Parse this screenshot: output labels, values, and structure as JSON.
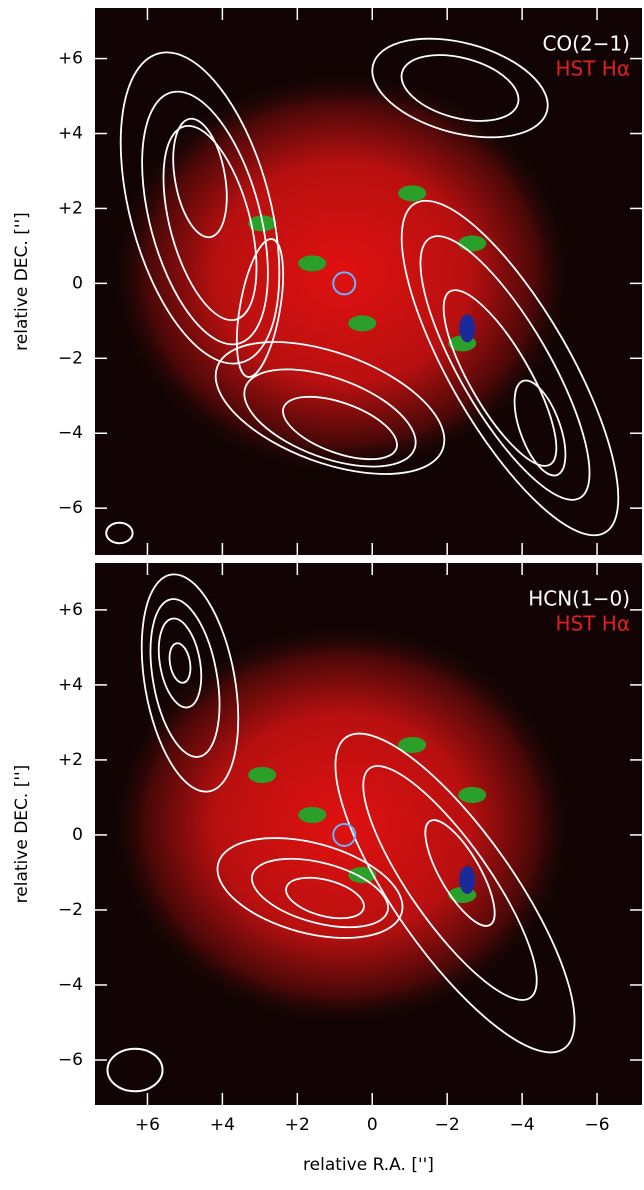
{
  "chart_data": [
    {
      "type": "image",
      "legend": [
        "CO(2−1)",
        "HST Hα"
      ],
      "ylabel": "relative DEC. ['']",
      "xlim": [
        7.4,
        -7.2
      ],
      "ylim": [
        -7.25,
        7.35
      ],
      "xticks": [
        {
          "value": 6,
          "label": "+6"
        },
        {
          "value": 4,
          "label": "+4"
        },
        {
          "value": 2,
          "label": "+2"
        },
        0,
        {
          "value": -2,
          "label": "−2"
        },
        {
          "value": -4,
          "label": "−4"
        },
        {
          "value": -6,
          "label": "−6"
        }
      ],
      "yticks": [
        {
          "value": 6,
          "label": "+6"
        },
        {
          "value": 4,
          "label": "+4"
        },
        {
          "value": 2,
          "label": "+2"
        },
        0,
        {
          "value": -2,
          "label": "−2"
        },
        {
          "value": -4,
          "label": "−4"
        },
        {
          "value": -6,
          "label": "−6"
        }
      ]
    },
    {
      "type": "image",
      "legend": [
        "HCN(1−0)",
        "HST Hα"
      ],
      "ylabel": "relative DEC. ['']",
      "xlabel": "relative R.A. ['']",
      "xlim": [
        7.4,
        -7.2
      ],
      "ylim": [
        -7.2,
        7.25
      ],
      "xticks": [
        {
          "value": 6,
          "label": "+6"
        },
        {
          "value": 4,
          "label": "+4"
        },
        {
          "value": 2,
          "label": "+2"
        },
        0,
        {
          "value": -2,
          "label": "−2"
        },
        {
          "value": -4,
          "label": "−4"
        },
        {
          "value": -6,
          "label": "−6"
        }
      ],
      "yticks": [
        {
          "value": 6,
          "label": "+6"
        },
        {
          "value": 4,
          "label": "+4"
        },
        {
          "value": 2,
          "label": "+2"
        },
        0,
        {
          "value": -2,
          "label": "−2"
        },
        {
          "value": -4,
          "label": "−4"
        },
        {
          "value": -6,
          "label": "−6"
        }
      ]
    }
  ]
}
